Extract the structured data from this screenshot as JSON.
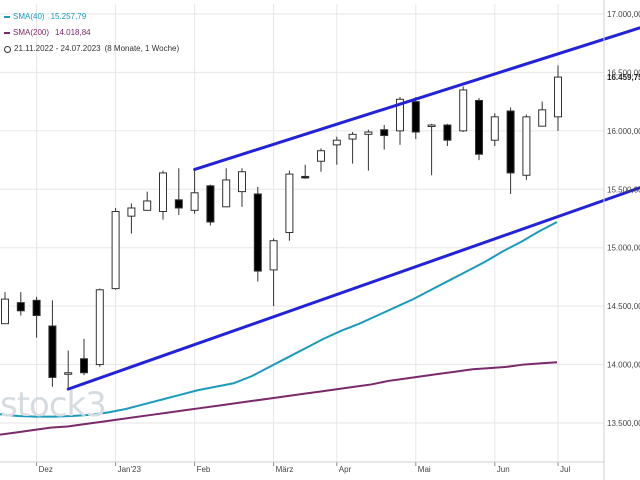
{
  "legend": {
    "sma40_label": "SMA(40)",
    "sma40_value": "15.257,79",
    "sma40_color": "#1a9bbd",
    "sma200_label": "SMA(200)",
    "sma200_value": "14.018,84",
    "sma200_color": "#7a2a6a",
    "period": "21.11.2022 - 24.07.2023",
    "period_note": "(8 Monate, 1 Woche)"
  },
  "watermark": "stock3",
  "chart_data": {
    "type": "candlestick",
    "x_labels": [
      "Dez",
      "Jan'23",
      "Feb",
      "März",
      "Apr",
      "Mai",
      "Jun",
      "Jul"
    ],
    "x_label_week_index": [
      2,
      7,
      12,
      17,
      21,
      26,
      31,
      35
    ],
    "y_ticks": [
      "17.000,00",
      "16.500,00",
      "16.000,00",
      "15.500,00",
      "15.000,00",
      "14.500,00",
      "14.000,00",
      "13.500,00"
    ],
    "y_tick_values": [
      17000,
      16500,
      16000,
      15500,
      15000,
      14500,
      14000,
      13500
    ],
    "ylim": [
      13350,
      17100
    ],
    "last_price_label": "16.459,75",
    "last_price": 16460,
    "candles": [
      {
        "o": 14350,
        "h": 14620,
        "l": 14350,
        "c": 14560
      },
      {
        "o": 14530,
        "h": 14620,
        "l": 14420,
        "c": 14460
      },
      {
        "o": 14550,
        "h": 14580,
        "l": 14230,
        "c": 14420
      },
      {
        "o": 14330,
        "h": 14550,
        "l": 13810,
        "c": 13890
      },
      {
        "o": 13930,
        "h": 14120,
        "l": 13780,
        "c": 13930
      },
      {
        "o": 14050,
        "h": 14220,
        "l": 13910,
        "c": 13930
      },
      {
        "o": 14000,
        "h": 14650,
        "l": 13980,
        "c": 14640
      },
      {
        "o": 14650,
        "h": 15340,
        "l": 14640,
        "c": 15310
      },
      {
        "o": 15270,
        "h": 15380,
        "l": 15120,
        "c": 15340
      },
      {
        "o": 15320,
        "h": 15480,
        "l": 15330,
        "c": 15400
      },
      {
        "o": 15310,
        "h": 15660,
        "l": 15240,
        "c": 15640
      },
      {
        "o": 15410,
        "h": 15680,
        "l": 15280,
        "c": 15340
      },
      {
        "o": 15320,
        "h": 15680,
        "l": 15290,
        "c": 15470
      },
      {
        "o": 15530,
        "h": 15540,
        "l": 15190,
        "c": 15220
      },
      {
        "o": 15350,
        "h": 15680,
        "l": 15350,
        "c": 15580
      },
      {
        "o": 15480,
        "h": 15680,
        "l": 15350,
        "c": 15650
      },
      {
        "o": 15460,
        "h": 15520,
        "l": 14710,
        "c": 14800
      },
      {
        "o": 14810,
        "h": 15080,
        "l": 14500,
        "c": 15060
      },
      {
        "o": 15130,
        "h": 15660,
        "l": 15060,
        "c": 15630
      },
      {
        "o": 15610,
        "h": 15710,
        "l": 15590,
        "c": 15600
      },
      {
        "o": 15740,
        "h": 15850,
        "l": 15650,
        "c": 15830
      },
      {
        "o": 15880,
        "h": 15950,
        "l": 15710,
        "c": 15920
      },
      {
        "o": 15930,
        "h": 15990,
        "l": 15720,
        "c": 15970
      },
      {
        "o": 15970,
        "h": 16010,
        "l": 15660,
        "c": 15990
      },
      {
        "o": 16010,
        "h": 16050,
        "l": 15840,
        "c": 15960
      },
      {
        "o": 16000,
        "h": 16290,
        "l": 15880,
        "c": 16270
      },
      {
        "o": 16250,
        "h": 16290,
        "l": 15930,
        "c": 15990
      },
      {
        "o": 16040,
        "h": 16060,
        "l": 15620,
        "c": 16050
      },
      {
        "o": 16050,
        "h": 16060,
        "l": 15870,
        "c": 15920
      },
      {
        "o": 16000,
        "h": 16380,
        "l": 15990,
        "c": 16350
      },
      {
        "o": 16260,
        "h": 16280,
        "l": 15750,
        "c": 15800
      },
      {
        "o": 15920,
        "h": 16150,
        "l": 15870,
        "c": 16120
      },
      {
        "o": 16170,
        "h": 16200,
        "l": 15460,
        "c": 15640
      },
      {
        "o": 15620,
        "h": 16140,
        "l": 15580,
        "c": 16120
      },
      {
        "o": 16040,
        "h": 16250,
        "l": 16040,
        "c": 16180
      },
      {
        "o": 16120,
        "h": 16560,
        "l": 16000,
        "c": 16460
      }
    ],
    "sma40": [
      13575,
      13560,
      13555,
      13555,
      13560,
      13570,
      13590,
      13620,
      13660,
      13700,
      13740,
      13780,
      13810,
      13840,
      13900,
      13980,
      14060,
      14140,
      14220,
      14290,
      14350,
      14420,
      14490,
      14560,
      14640,
      14720,
      14800,
      14880,
      14970,
      15050,
      15140,
      15220
    ],
    "sma40_start_index": 3,
    "sma200": [
      13400,
      13420,
      13440,
      13460,
      13470,
      13490,
      13510,
      13530,
      13550,
      13570,
      13590,
      13610,
      13630,
      13650,
      13670,
      13690,
      13710,
      13730,
      13750,
      13770,
      13790,
      13810,
      13830,
      13860,
      13880,
      13900,
      13920,
      13940,
      13960,
      13970,
      13980,
      14000,
      14010,
      14020
    ],
    "channel_upper": {
      "from": {
        "i": 12,
        "y": 15670
      },
      "to": {
        "i": 42,
        "y": 16960
      }
    },
    "channel_lower": {
      "from": {
        "i": 4,
        "y": 13790
      },
      "to": {
        "i": 42,
        "y": 15600
      }
    }
  }
}
